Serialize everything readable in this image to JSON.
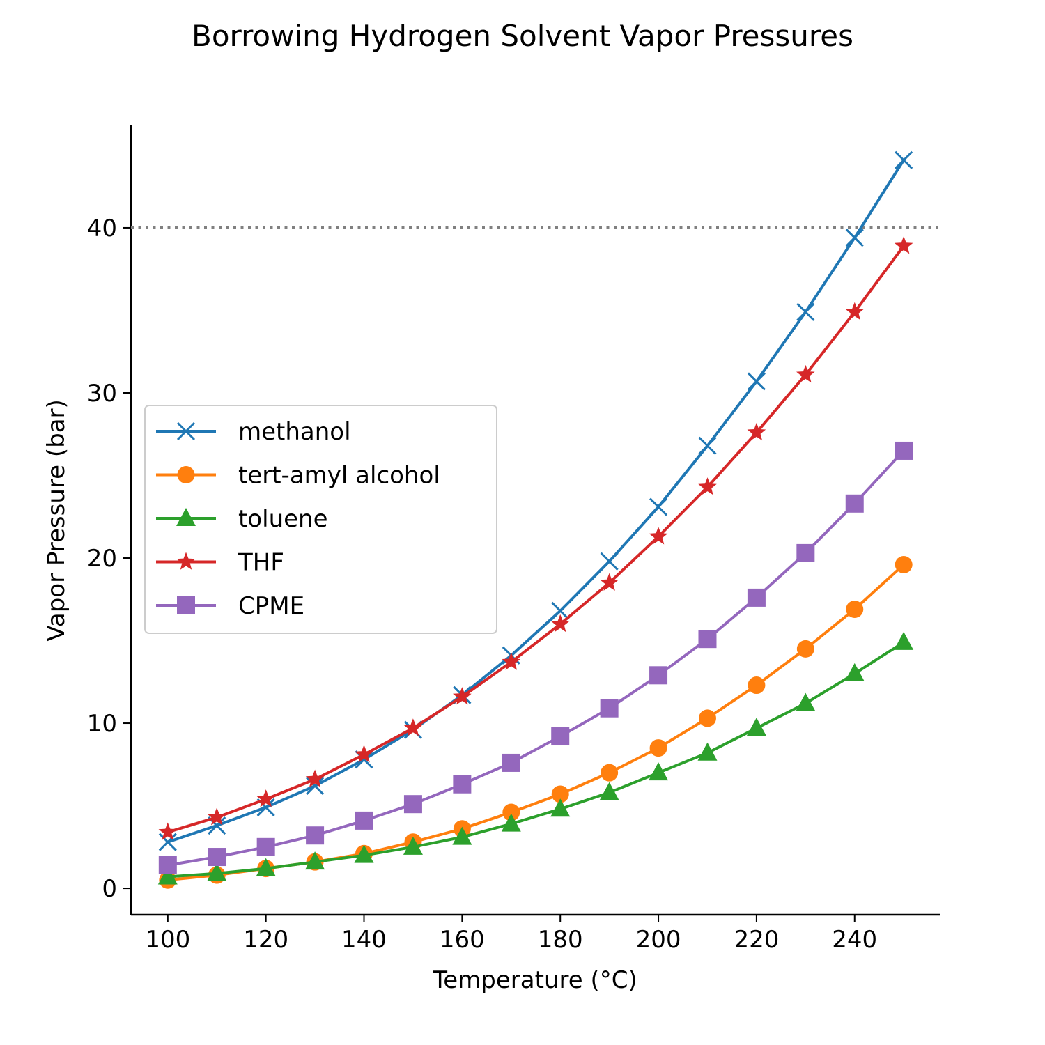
{
  "chart_data": {
    "type": "line",
    "title": "Borrowing Hydrogen Solvent Vapor Pressures",
    "xlabel": "Temperature (°C)",
    "ylabel": "Vapor Pressure (bar)",
    "x": [
      100,
      110,
      120,
      130,
      140,
      150,
      160,
      170,
      180,
      190,
      200,
      210,
      220,
      230,
      240,
      250
    ],
    "xlim": [
      92.5,
      257.5
    ],
    "ylim": [
      -1.6,
      46.2
    ],
    "xticks": [
      100,
      120,
      140,
      160,
      180,
      200,
      220,
      240
    ],
    "yticks": [
      0,
      10,
      20,
      30,
      40
    ],
    "grid": false,
    "legend_position": "center-left",
    "reference_line": {
      "y": 40,
      "style": "dotted",
      "color": "#808080"
    },
    "series": [
      {
        "name": "methanol",
        "color": "#1f77b4",
        "marker": "x",
        "values": [
          2.8,
          3.8,
          4.9,
          6.2,
          7.8,
          9.6,
          11.7,
          14.1,
          16.8,
          19.8,
          23.1,
          26.8,
          30.7,
          34.9,
          39.4,
          44.1
        ]
      },
      {
        "name": "tert-amyl alcohol",
        "color": "#ff7f0e",
        "marker": "circle",
        "values": [
          0.5,
          0.8,
          1.2,
          1.6,
          2.1,
          2.8,
          3.6,
          4.6,
          5.7,
          7.0,
          8.5,
          10.3,
          12.3,
          14.5,
          16.9,
          19.6
        ]
      },
      {
        "name": "toluene",
        "color": "#2ca02c",
        "marker": "triangle",
        "values": [
          0.7,
          0.9,
          1.2,
          1.6,
          2.0,
          2.5,
          3.1,
          3.9,
          4.8,
          5.8,
          7.0,
          8.2,
          9.7,
          11.2,
          13.0,
          14.9
        ]
      },
      {
        "name": "THF",
        "color": "#d62728",
        "marker": "star",
        "values": [
          3.4,
          4.3,
          5.4,
          6.6,
          8.1,
          9.7,
          11.6,
          13.7,
          16.0,
          18.5,
          21.3,
          24.3,
          27.6,
          31.1,
          34.9,
          38.9
        ]
      },
      {
        "name": "CPME",
        "color": "#9467bd",
        "marker": "square",
        "values": [
          1.4,
          1.9,
          2.5,
          3.2,
          4.1,
          5.1,
          6.3,
          7.6,
          9.2,
          10.9,
          12.9,
          15.1,
          17.6,
          20.3,
          23.3,
          26.5
        ]
      }
    ]
  }
}
